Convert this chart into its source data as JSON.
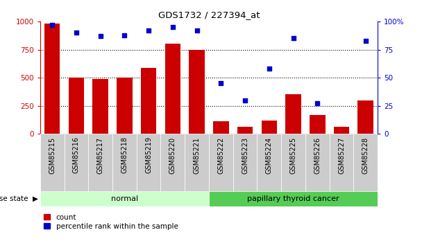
{
  "title": "GDS1732 / 227394_at",
  "samples": [
    "GSM85215",
    "GSM85216",
    "GSM85217",
    "GSM85218",
    "GSM85219",
    "GSM85220",
    "GSM85221",
    "GSM85222",
    "GSM85223",
    "GSM85224",
    "GSM85225",
    "GSM85226",
    "GSM85227",
    "GSM85228"
  ],
  "counts": [
    980,
    500,
    490,
    500,
    590,
    800,
    750,
    110,
    65,
    120,
    350,
    170,
    60,
    300
  ],
  "percentiles": [
    97,
    90,
    87,
    88,
    92,
    95,
    92,
    45,
    30,
    58,
    85,
    27,
    null,
    83
  ],
  "groups": [
    "normal",
    "normal",
    "normal",
    "normal",
    "normal",
    "normal",
    "normal",
    "papillary thyroid cancer",
    "papillary thyroid cancer",
    "papillary thyroid cancer",
    "papillary thyroid cancer",
    "papillary thyroid cancer",
    "papillary thyroid cancer",
    "papillary thyroid cancer"
  ],
  "bar_color": "#cc0000",
  "dot_color": "#0000cc",
  "normal_bg": "#ccffcc",
  "cancer_bg": "#55cc55",
  "tick_bg": "#cccccc",
  "ylim_left": [
    0,
    1000
  ],
  "ylim_right": [
    0,
    100
  ],
  "yticks_left": [
    0,
    250,
    500,
    750,
    1000
  ],
  "ytick_labels_left": [
    "0",
    "250",
    "500",
    "750",
    "1000"
  ],
  "yticks_right": [
    0,
    25,
    50,
    75,
    100
  ],
  "ytick_labels_right": [
    "0",
    "25",
    "50",
    "75",
    "100%"
  ],
  "legend_count_label": "count",
  "legend_pct_label": "percentile rank within the sample",
  "disease_state_label": "disease state",
  "group_normal_label": "normal",
  "group_cancer_label": "papillary thyroid cancer"
}
